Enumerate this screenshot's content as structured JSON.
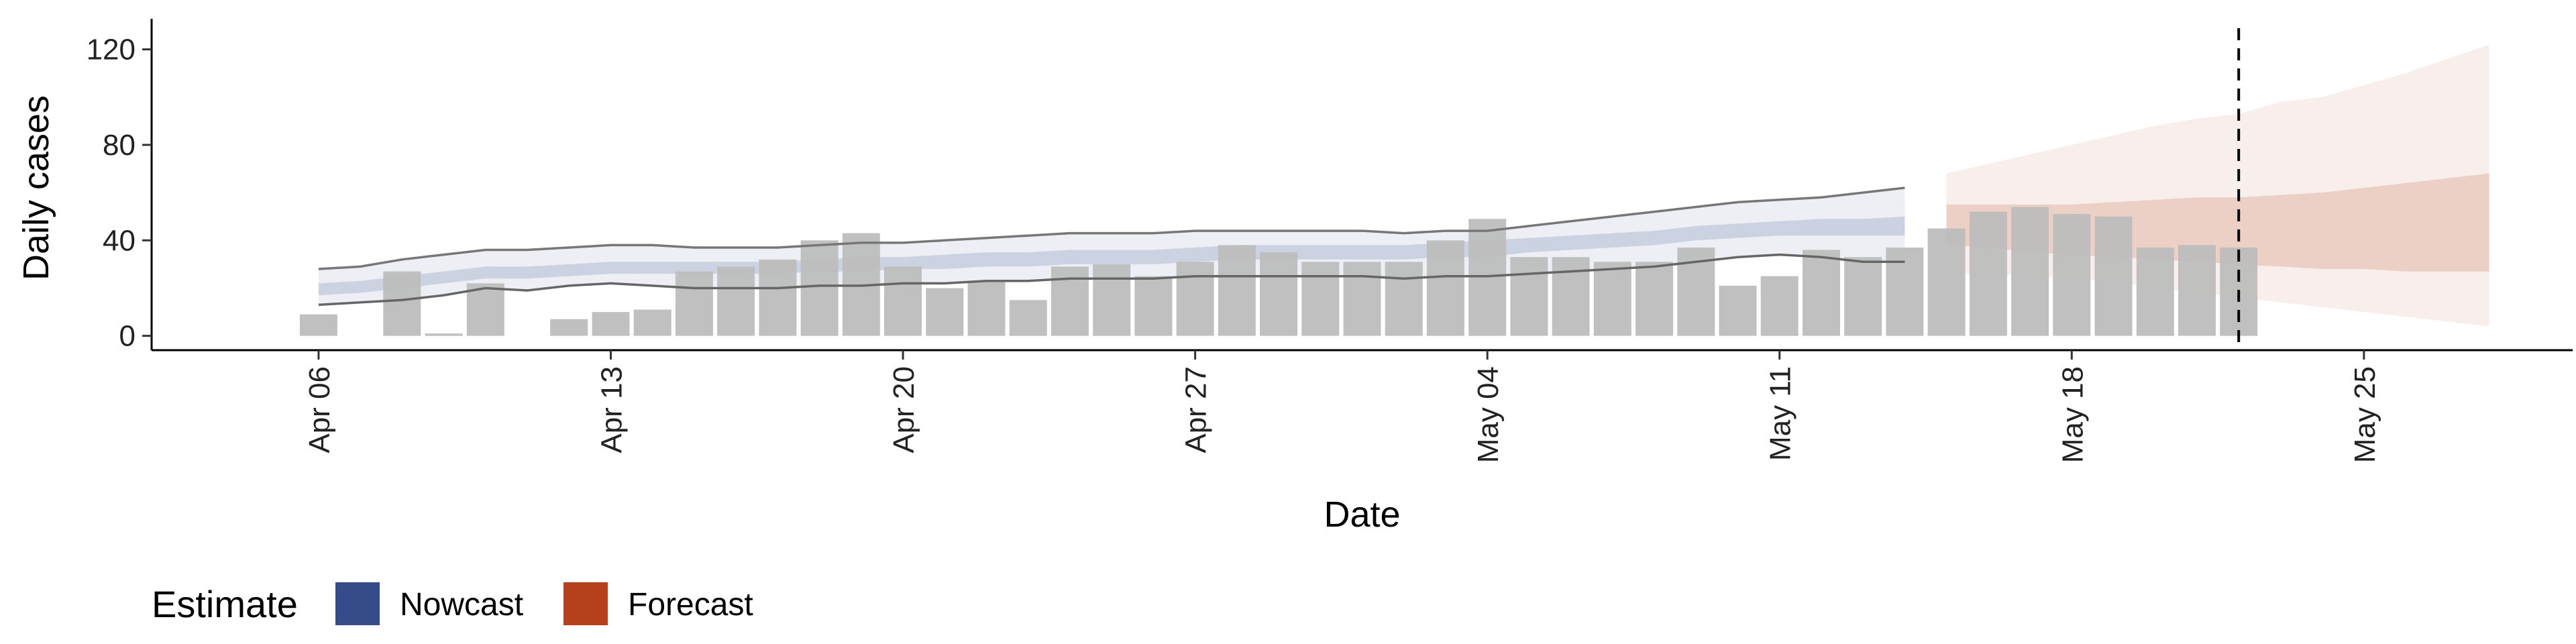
{
  "chart_data": {
    "type": "bar",
    "xlabel": "Date",
    "ylabel": "Daily cases",
    "ylim": [
      -6,
      130
    ],
    "xlim": [
      "2020-04-02",
      "2020-05-30"
    ],
    "y_ticks": [
      0,
      40,
      80,
      120
    ],
    "x_ticks": [
      {
        "date": "2020-04-06",
        "label": "Apr 06"
      },
      {
        "date": "2020-04-13",
        "label": "Apr 13"
      },
      {
        "date": "2020-04-20",
        "label": "Apr 20"
      },
      {
        "date": "2020-04-27",
        "label": "Apr 27"
      },
      {
        "date": "2020-05-04",
        "label": "May 04"
      },
      {
        "date": "2020-05-11",
        "label": "May 11"
      },
      {
        "date": "2020-05-18",
        "label": "May 18"
      },
      {
        "date": "2020-05-25",
        "label": "May 25"
      }
    ],
    "grid": false,
    "vline_date": "2020-05-22",
    "reported_cases": {
      "color": "#bdbdbd",
      "dates": [
        "2020-04-06",
        "2020-04-07",
        "2020-04-08",
        "2020-04-09",
        "2020-04-10",
        "2020-04-11",
        "2020-04-12",
        "2020-04-13",
        "2020-04-14",
        "2020-04-15",
        "2020-04-16",
        "2020-04-17",
        "2020-04-18",
        "2020-04-19",
        "2020-04-20",
        "2020-04-21",
        "2020-04-22",
        "2020-04-23",
        "2020-04-24",
        "2020-04-25",
        "2020-04-26",
        "2020-04-27",
        "2020-04-28",
        "2020-04-29",
        "2020-04-30",
        "2020-05-01",
        "2020-05-02",
        "2020-05-03",
        "2020-05-04",
        "2020-05-05",
        "2020-05-06",
        "2020-05-07",
        "2020-05-08",
        "2020-05-09",
        "2020-05-10",
        "2020-05-11",
        "2020-05-12",
        "2020-05-13",
        "2020-05-14",
        "2020-05-15",
        "2020-05-16",
        "2020-05-17",
        "2020-05-18",
        "2020-05-19",
        "2020-05-20",
        "2020-05-21",
        "2020-05-22"
      ],
      "values": [
        9,
        0,
        27,
        1,
        22,
        0,
        7,
        10,
        11,
        27,
        29,
        32,
        40,
        43,
        29,
        20,
        23,
        15,
        29,
        30,
        25,
        31,
        38,
        35,
        31,
        31,
        31,
        40,
        49,
        33,
        33,
        31,
        31,
        37,
        21,
        25,
        36,
        33,
        37,
        45,
        52,
        54,
        51,
        50,
        37,
        38,
        37
      ]
    },
    "series": [
      {
        "name": "Nowcast",
        "color": "#344c8a",
        "dates": [
          "2020-04-06",
          "2020-04-07",
          "2020-04-08",
          "2020-04-09",
          "2020-04-10",
          "2020-04-11",
          "2020-04-12",
          "2020-04-13",
          "2020-04-14",
          "2020-04-15",
          "2020-04-16",
          "2020-04-17",
          "2020-04-18",
          "2020-04-19",
          "2020-04-20",
          "2020-04-21",
          "2020-04-22",
          "2020-04-23",
          "2020-04-24",
          "2020-04-25",
          "2020-04-26",
          "2020-04-27",
          "2020-04-28",
          "2020-04-29",
          "2020-04-30",
          "2020-05-01",
          "2020-05-02",
          "2020-05-03",
          "2020-05-04",
          "2020-05-05",
          "2020-05-06",
          "2020-05-07",
          "2020-05-08",
          "2020-05-09",
          "2020-05-10",
          "2020-05-11",
          "2020-05-12",
          "2020-05-13",
          "2020-05-14"
        ],
        "lower90": [
          13,
          14,
          15,
          17,
          20,
          19,
          21,
          22,
          21,
          20,
          20,
          20,
          21,
          21,
          22,
          22,
          23,
          23,
          24,
          24,
          24,
          25,
          25,
          25,
          25,
          25,
          24,
          25,
          25,
          26,
          27,
          28,
          29,
          31,
          33,
          34,
          33,
          31,
          31
        ],
        "upper90": [
          28,
          29,
          32,
          34,
          36,
          36,
          37,
          38,
          38,
          37,
          37,
          37,
          38,
          39,
          39,
          40,
          41,
          42,
          43,
          43,
          43,
          44,
          44,
          44,
          44,
          44,
          43,
          44,
          44,
          46,
          48,
          50,
          52,
          54,
          56,
          57,
          58,
          60,
          62
        ],
        "lower50": [
          17,
          18,
          20,
          22,
          24,
          24,
          25,
          26,
          26,
          26,
          26,
          26,
          27,
          27,
          28,
          28,
          29,
          29,
          30,
          30,
          30,
          31,
          32,
          32,
          32,
          32,
          32,
          33,
          33,
          35,
          36,
          37,
          38,
          40,
          41,
          42,
          42,
          42,
          42
        ],
        "upper50": [
          22,
          23,
          25,
          27,
          29,
          29,
          30,
          31,
          31,
          31,
          31,
          31,
          32,
          33,
          33,
          34,
          35,
          35,
          36,
          36,
          36,
          37,
          38,
          38,
          38,
          38,
          38,
          39,
          40,
          41,
          42,
          43,
          44,
          46,
          47,
          48,
          49,
          49,
          50
        ]
      },
      {
        "name": "Forecast",
        "color": "#b5411c",
        "dates": [
          "2020-05-15",
          "2020-05-16",
          "2020-05-17",
          "2020-05-18",
          "2020-05-19",
          "2020-05-20",
          "2020-05-21",
          "2020-05-22",
          "2020-05-23",
          "2020-05-24",
          "2020-05-25",
          "2020-05-26",
          "2020-05-27",
          "2020-05-28"
        ],
        "lower90": [
          26,
          26,
          25,
          24,
          23,
          20,
          18,
          16,
          14,
          12,
          10,
          8,
          6,
          4
        ],
        "upper90": [
          68,
          72,
          76,
          80,
          84,
          88,
          91,
          93,
          98,
          100,
          105,
          110,
          116,
          122
        ],
        "lower50": [
          38,
          37,
          35,
          34,
          33,
          32,
          31,
          30,
          29,
          28,
          28,
          27,
          27,
          27
        ],
        "upper50": [
          55,
          55,
          55,
          55,
          56,
          57,
          58,
          58,
          59,
          60,
          62,
          64,
          66,
          68
        ]
      }
    ],
    "legend": {
      "title": "Estimate",
      "position": "bottom-left",
      "items": [
        {
          "label": "Nowcast",
          "color": "#344c8a"
        },
        {
          "label": "Forecast",
          "color": "#b5411c"
        }
      ]
    }
  }
}
